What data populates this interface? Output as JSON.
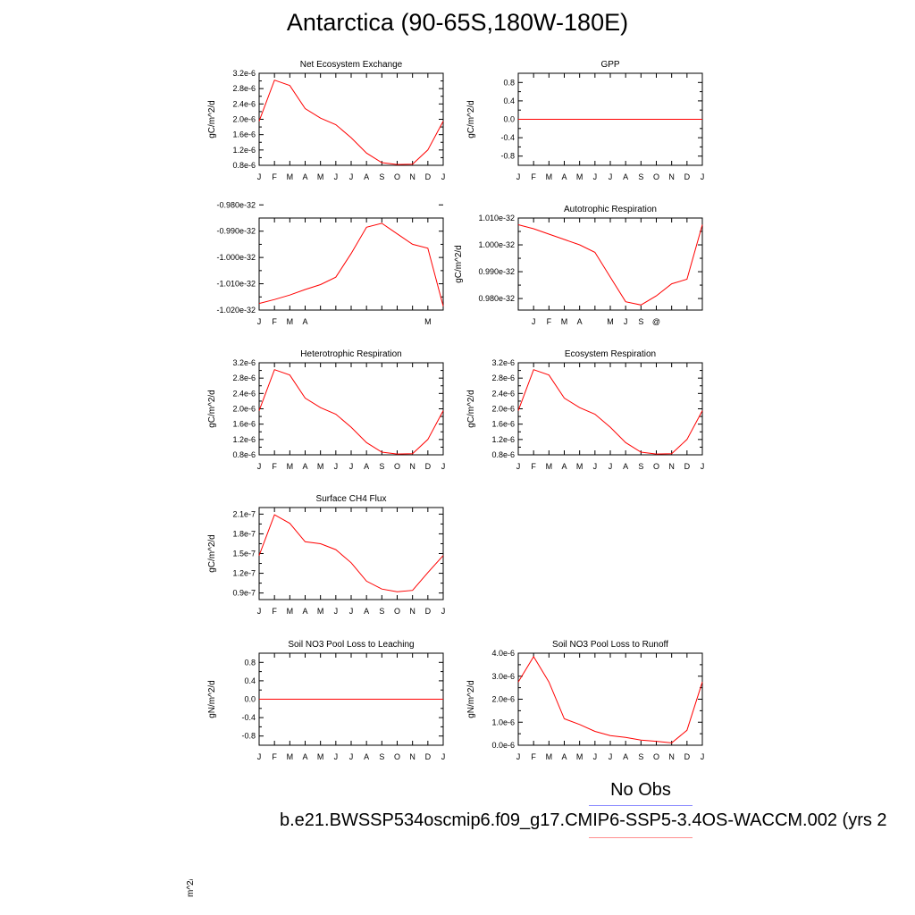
{
  "title": "Antarctica (90-65S,180W-180E)",
  "legend": {
    "obs_label": "No Obs",
    "case_label": "b.e21.BWSSP534oscmip6.f09_g17.CMIP6-SSP5-3.4OS-WACCM.002 (yrs 2",
    "obs_color": "#8f8fff",
    "case_color": "#ff8f8f"
  },
  "stray_label": "m^2/d",
  "colors": {
    "line": "#ff0000",
    "axis": "#000000"
  },
  "chart_data": [
    {
      "type": "line",
      "id": "net-ecosystem-exchange",
      "title": "Net Ecosystem Exchange",
      "ylabel": "gC/m^2/d",
      "categories": [
        "J",
        "F",
        "M",
        "A",
        "M",
        "J",
        "J",
        "A",
        "S",
        "O",
        "N",
        "D",
        "J"
      ],
      "yticks": [
        8e-07,
        1.2e-06,
        1.6e-06,
        2e-06,
        2.4e-06,
        2.8e-06,
        3.2e-06
      ],
      "ytick_labels": [
        "0.8e-6",
        "1.2e-6",
        "1.6e-6",
        "2.0e-6",
        "2.4e-6",
        "2.8e-6",
        "3.2e-6"
      ],
      "ylim": [
        8e-07,
        3.2e-06
      ],
      "values": [
        1.95e-06,
        3.02e-06,
        2.88e-06,
        2.28e-06,
        2.03e-06,
        1.86e-06,
        1.52e-06,
        1.12e-06,
        8.7e-07,
        8.2e-07,
        8.3e-07,
        1.2e-06,
        1.95e-06
      ]
    },
    {
      "type": "line",
      "id": "gpp",
      "title": "GPP",
      "ylabel": "gC/m^2/d",
      "categories": [
        "J",
        "F",
        "M",
        "A",
        "M",
        "J",
        "J",
        "A",
        "S",
        "O",
        "N",
        "D",
        "J"
      ],
      "yticks": [
        -0.8,
        -0.4,
        0.0,
        0.4,
        0.8
      ],
      "ytick_labels": [
        "-0.8",
        "-0.4",
        "0.0",
        "0.4",
        "0.8"
      ],
      "ylim": [
        -1.0,
        1.0
      ],
      "values": [
        0,
        0,
        0,
        0,
        0,
        0,
        0,
        0,
        0,
        0,
        0,
        0,
        0
      ]
    },
    {
      "type": "line",
      "id": "unlabeled-flux",
      "title": "",
      "ylabel": "",
      "categories": [
        "J",
        "F",
        "M",
        "A",
        "",
        "",
        "",
        "",
        "",
        "",
        "",
        "M",
        ""
      ],
      "yticks": [
        -1.02e-32,
        -1.01e-32,
        -1e-32,
        -9.9e-33,
        -9.8e-33
      ],
      "ytick_labels": [
        "-1.020e-32",
        "-1.010e-32",
        "-1.000e-32",
        "-0.990e-32",
        "-0.980e-32"
      ],
      "ylim": [
        -1.02e-32,
        -9.85e-33
      ],
      "values": [
        -1.0175e-32,
        -1.016e-32,
        -1.0143e-32,
        -1.0122e-32,
        -1.0103e-32,
        -1.0075e-32,
        -9.985e-33,
        -9.885e-33,
        -9.87e-33,
        -9.91e-33,
        -9.95e-33,
        -9.965e-33,
        -1.0185e-32
      ]
    },
    {
      "type": "line",
      "id": "autotrophic-respiration",
      "title": "Autotrophic Respiration",
      "ylabel": "gC/m^2/d",
      "categories": [
        "",
        "J",
        "F",
        "M",
        "A",
        "",
        "M",
        "J",
        "S",
        "@",
        "",
        "",
        ""
      ],
      "yticks": [
        9.8e-33,
        9.9e-33,
        1e-32,
        1.01e-32
      ],
      "ytick_labels": [
        "0.980e-32",
        "0.990e-32",
        "1.000e-32",
        "1.010e-32"
      ],
      "ylim": [
        9.757e-33,
        1.01e-32
      ],
      "values": [
        1.0075e-32,
        1.006e-32,
        1.004e-32,
        1.002e-32,
        1e-32,
        9.972e-33,
        9.88e-33,
        9.788e-33,
        9.776e-33,
        9.81e-33,
        9.855e-33,
        9.872e-33,
        1.0075e-32
      ]
    },
    {
      "type": "line",
      "id": "heterotrophic-respiration",
      "title": "Heterotrophic Respiration",
      "ylabel": "gC/m^2/d",
      "categories": [
        "J",
        "F",
        "M",
        "A",
        "M",
        "J",
        "J",
        "A",
        "S",
        "O",
        "N",
        "D",
        "J"
      ],
      "yticks": [
        8e-07,
        1.2e-06,
        1.6e-06,
        2e-06,
        2.4e-06,
        2.8e-06,
        3.2e-06
      ],
      "ytick_labels": [
        "0.8e-6",
        "1.2e-6",
        "1.6e-6",
        "2.0e-6",
        "2.4e-6",
        "2.8e-6",
        "3.2e-6"
      ],
      "ylim": [
        8e-07,
        3.2e-06
      ],
      "values": [
        1.95e-06,
        3.02e-06,
        2.88e-06,
        2.28e-06,
        2.03e-06,
        1.86e-06,
        1.52e-06,
        1.12e-06,
        8.7e-07,
        8.2e-07,
        8.3e-07,
        1.2e-06,
        1.95e-06
      ]
    },
    {
      "type": "line",
      "id": "ecosystem-respiration",
      "title": "Ecosystem Respiration",
      "ylabel": "gC/m^2/d",
      "categories": [
        "J",
        "F",
        "M",
        "A",
        "M",
        "J",
        "J",
        "A",
        "S",
        "O",
        "N",
        "D",
        "J"
      ],
      "yticks": [
        8e-07,
        1.2e-06,
        1.6e-06,
        2e-06,
        2.4e-06,
        2.8e-06,
        3.2e-06
      ],
      "ytick_labels": [
        "0.8e-6",
        "1.2e-6",
        "1.6e-6",
        "2.0e-6",
        "2.4e-6",
        "2.8e-6",
        "3.2e-6"
      ],
      "ylim": [
        8e-07,
        3.2e-06
      ],
      "values": [
        1.95e-06,
        3.02e-06,
        2.88e-06,
        2.28e-06,
        2.03e-06,
        1.86e-06,
        1.52e-06,
        1.12e-06,
        8.7e-07,
        8.2e-07,
        8.3e-07,
        1.2e-06,
        1.95e-06
      ]
    },
    {
      "type": "line",
      "id": "surface-ch4-flux",
      "title": "Surface CH4 Flux",
      "ylabel": "gC/m^2/d",
      "categories": [
        "J",
        "F",
        "M",
        "A",
        "M",
        "J",
        "J",
        "A",
        "S",
        "O",
        "N",
        "D",
        "J"
      ],
      "yticks": [
        9e-08,
        1.2e-07,
        1.5e-07,
        1.8e-07,
        2.1e-07
      ],
      "ytick_labels": [
        "0.9e-7",
        "1.2e-7",
        "1.5e-7",
        "1.8e-7",
        "2.1e-7"
      ],
      "ylim": [
        8e-08,
        2.2e-07
      ],
      "values": [
        1.47e-07,
        2.09e-07,
        1.96e-07,
        1.68e-07,
        1.65e-07,
        1.56e-07,
        1.36e-07,
        1.08e-07,
        9.6e-08,
        9.2e-08,
        9.4e-08,
        1.21e-07,
        1.47e-07
      ]
    },
    {
      "type": "line",
      "id": "soil-no3-leaching",
      "title": "Soil NO3 Pool Loss to Leaching",
      "ylabel": "gN/m^2/d",
      "categories": [
        "J",
        "F",
        "M",
        "A",
        "M",
        "J",
        "J",
        "A",
        "S",
        "O",
        "N",
        "D",
        "J"
      ],
      "yticks": [
        -0.8,
        -0.4,
        0.0,
        0.4,
        0.8
      ],
      "ytick_labels": [
        "-0.8",
        "-0.4",
        "0.0",
        "0.4",
        "0.8"
      ],
      "ylim": [
        -1.0,
        1.0
      ],
      "values": [
        0,
        0,
        0,
        0,
        0,
        0,
        0,
        0,
        0,
        0,
        0,
        0,
        0
      ]
    },
    {
      "type": "line",
      "id": "soil-no3-runoff",
      "title": "Soil NO3 Pool Loss to Runoff",
      "ylabel": "gN/m^2/d",
      "categories": [
        "J",
        "F",
        "M",
        "A",
        "M",
        "J",
        "J",
        "A",
        "S",
        "O",
        "N",
        "D",
        "J"
      ],
      "yticks": [
        0.0,
        1e-06,
        2e-06,
        3e-06,
        4e-06
      ],
      "ytick_labels": [
        "0.0e-6",
        "1.0e-6",
        "2.0e-6",
        "3.0e-6",
        "4.0e-6"
      ],
      "ylim": [
        0.0,
        4e-06
      ],
      "values": [
        2.75e-06,
        3.85e-06,
        2.75e-06,
        1.15e-06,
        9e-07,
        6e-07,
        4.2e-07,
        3.4e-07,
        2.2e-07,
        1.7e-07,
        1e-07,
        6.5e-07,
        2.75e-06
      ]
    }
  ]
}
